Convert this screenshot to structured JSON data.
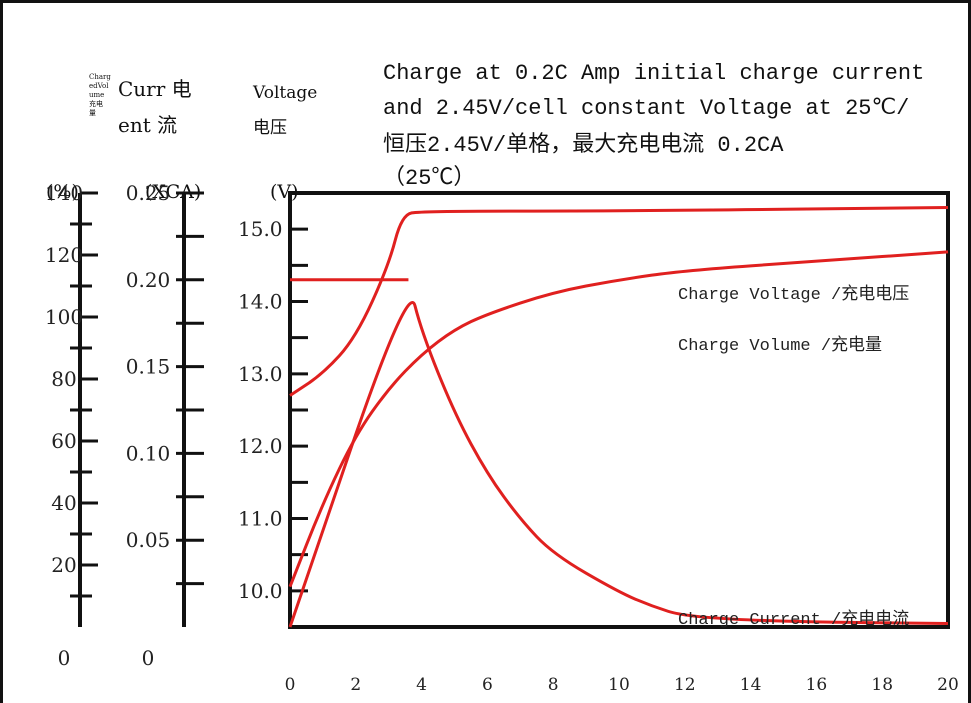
{
  "title_lines": [
    "Charge at 0.2C Amp initial charge current",
    "and 2.45V/cell constant Voltage at 25℃/",
    "恒压2.45V/单格，最大充电电流 0.2CA",
    "（25℃）"
  ],
  "axes": {
    "volume": {
      "header_lines": [
        "Charg",
        "edVol",
        "ume",
        "充电",
        "量"
      ],
      "unit": "(%)",
      "tick_labels": [
        "140",
        "120",
        "100",
        "80",
        "60",
        "40",
        "20",
        "0"
      ]
    },
    "current": {
      "header_lines": [
        "Curr 电",
        "ent  流"
      ],
      "unit": "(XCA)",
      "tick_labels": [
        "0.25",
        "0.20",
        "0.15",
        "0.10",
        "0.05",
        "0"
      ]
    },
    "voltage": {
      "header_lines": [
        "Voltage",
        "电压"
      ],
      "unit": "(V)",
      "tick_labels": [
        "15.0",
        "14.0",
        "13.0",
        "12.0",
        "11.0",
        "10.0"
      ]
    },
    "time": {
      "tick_labels": [
        "0",
        "2",
        "4",
        "6",
        "8",
        "10",
        "12",
        "14",
        "16",
        "18",
        "20"
      ]
    }
  },
  "chart_data": {
    "type": "line",
    "title": "Charge at 0.2C Amp initial charge current and 2.45V/cell constant Voltage at 25℃/恒压2.45V/单格，最大充电电流 0.2CA（25℃）",
    "xlabel": "",
    "xlim": [
      0,
      20
    ],
    "y_axes": {
      "volume_percent": [
        0,
        140
      ],
      "current_xCA": [
        0,
        0.25
      ],
      "voltage_V": [
        9.5,
        15.5
      ]
    },
    "grid": false,
    "series": [
      {
        "name": "Charge Voltage /充电电压",
        "axis": "voltage_V",
        "color": "#e0201f",
        "points": [
          [
            0,
            12.7
          ],
          [
            1,
            13.0
          ],
          [
            2,
            13.5
          ],
          [
            3,
            14.5
          ],
          [
            3.4,
            15.2
          ],
          [
            4,
            15.25
          ],
          [
            10,
            15.25
          ],
          [
            20,
            15.3
          ]
        ]
      },
      {
        "name": "Charge Volume /充电量",
        "axis": "volume_percent",
        "color": "#e0201f",
        "points": [
          [
            0,
            13
          ],
          [
            1,
            40
          ],
          [
            2,
            62
          ],
          [
            3,
            77
          ],
          [
            4,
            88
          ],
          [
            5,
            96
          ],
          [
            6,
            101
          ],
          [
            8,
            108
          ],
          [
            10,
            112
          ],
          [
            12,
            115
          ],
          [
            16,
            118
          ],
          [
            20,
            121
          ]
        ]
      },
      {
        "name": "Charge Current /充电电流",
        "axis": "current_xCA",
        "color": "#e0201f",
        "points": [
          [
            0,
            0.0
          ],
          [
            3.6,
            0.2
          ],
          [
            4,
            0.17
          ],
          [
            5,
            0.123
          ],
          [
            6,
            0.088
          ],
          [
            7,
            0.062
          ],
          [
            8,
            0.042
          ],
          [
            10,
            0.02
          ],
          [
            11,
            0.012
          ],
          [
            12,
            0.006
          ],
          [
            15,
            0.003
          ],
          [
            20,
            0.002
          ]
        ]
      },
      {
        "name": "",
        "axis": "current_xCA",
        "color": "#e0201f",
        "points": [
          [
            0,
            0.2
          ],
          [
            3.6,
            0.2
          ]
        ]
      }
    ]
  }
}
